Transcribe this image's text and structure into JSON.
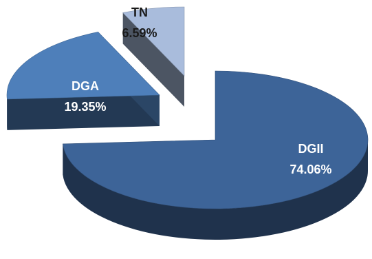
{
  "chart_data": {
    "type": "pie",
    "style": "3d-exploded",
    "title": "",
    "categories": [
      "DGII",
      "DGA",
      "TN"
    ],
    "values": [
      74.06,
      19.35,
      6.59
    ],
    "value_labels": [
      "74.06%",
      "19.35%",
      "6.59%"
    ],
    "label_colors": [
      "#ffffff",
      "#ffffff",
      "#1a1a1a"
    ],
    "colors": {
      "DGII": "#3d6498",
      "DGA": "#4e7fba",
      "TN": "#a9bcdc"
    },
    "legend": "none"
  }
}
